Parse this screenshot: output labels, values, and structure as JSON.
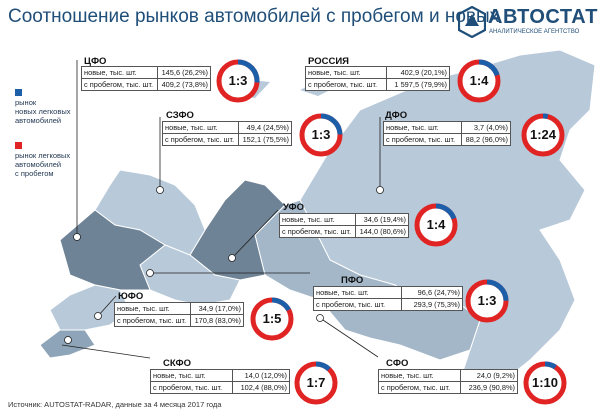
{
  "title": "Соотношение рынков автомобилей с пробегом и новых",
  "logo": {
    "word": "АВТОСТАТ",
    "sub": "АНАЛИТИЧЕСКОЕ АГЕНТСТВО"
  },
  "colors": {
    "new": "#1c5fa8",
    "used": "#e02424",
    "map_light": "#b8c9d9",
    "map_mid": "#8ea4b8",
    "map_dark": "#6e8396"
  },
  "legend": {
    "new": [
      "рынок",
      "новых легковых",
      "автомобилей"
    ],
    "used": [
      "рынок легковых",
      "автомобилей",
      "с пробегом"
    ]
  },
  "row_labels": {
    "new": "новые, тыс. шт.",
    "used": "с пробегом, тыс. шт."
  },
  "regions": [
    {
      "name": "ЦФО",
      "new": "145,6 (26,2%)",
      "used": "409,2 (73,8%)",
      "ratio": "1:3",
      "new_share": 0.262
    },
    {
      "name": "РОССИЯ",
      "new": "402,9 (20,1%)",
      "used": "1 597,5 (79,9%)",
      "ratio": "1:4",
      "new_share": 0.201
    },
    {
      "name": "СЗФО",
      "new": "49,4 (24,5%)",
      "used": "152,1 (75,5%)",
      "ratio": "1:3",
      "new_share": 0.245
    },
    {
      "name": "ДФО",
      "new": "3,7 (4,0%)",
      "used": "88,2 (96,0%)",
      "ratio": "1:24",
      "new_share": 0.04
    },
    {
      "name": "УФО",
      "new": "34,6 (19,4%)",
      "used": "144,0 (80,6%)",
      "ratio": "1:4",
      "new_share": 0.194
    },
    {
      "name": "ПФО",
      "new": "96,6 (24,7%)",
      "used": "293,9 (75,3%)",
      "ratio": "1:3",
      "new_share": 0.247
    },
    {
      "name": "ЮФО",
      "new": "34,9 (17,0%)",
      "used": "170,8 (83,0%)",
      "ratio": "1:5",
      "new_share": 0.17
    },
    {
      "name": "СКФО",
      "new": "14,0 (12,0%)",
      "used": "102,4 (88,0%)",
      "ratio": "1:7",
      "new_share": 0.12
    },
    {
      "name": "СФО",
      "new": "24,0 (9,2%)",
      "used": "236,9 (90,8%)",
      "ratio": "1:10",
      "new_share": 0.092
    }
  ],
  "source": "Источник: AUTOSTAT-RADAR, данные за 4 месяца 2017 года"
}
